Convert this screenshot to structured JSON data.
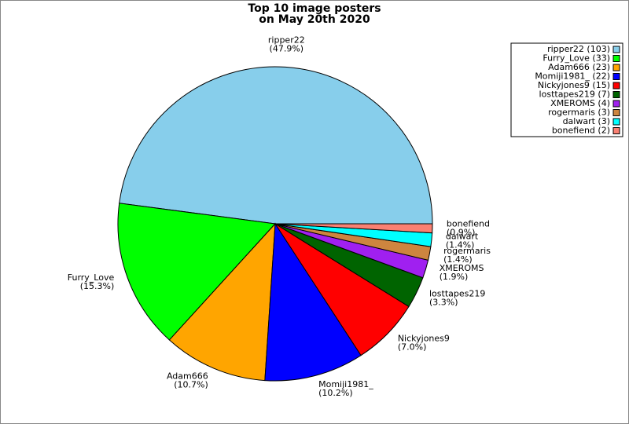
{
  "chart_data": {
    "type": "pie",
    "title_lines": [
      "Top 10 image posters",
      "on May 20th 2020"
    ],
    "categories": [
      "ripper22",
      "Furry_Love",
      "Adam666",
      "Momiji1981_",
      "Nickyjones9",
      "losttapes219",
      "XMEROMS",
      "rogermaris",
      "dalwart",
      "bonefiend"
    ],
    "values": [
      103,
      33,
      23,
      22,
      15,
      7,
      4,
      3,
      3,
      2
    ],
    "percent_labels": [
      "(47.9%)",
      "(15.3%)",
      "(10.7%)",
      "(10.2%)",
      "(7.0%)",
      "(3.3%)",
      "(1.9%)",
      "(1.4%)",
      "(1.4%)",
      "(0.9%)"
    ],
    "legend_labels": [
      "ripper22 (103)",
      "Furry_Love (33)",
      "Adam666 (23)",
      "Momiji1981_ (22)",
      "Nickyjones9 (15)",
      "losttapes219 (7)",
      "XMEROMS (4)",
      "rogermaris (3)",
      "dalwart (3)",
      "bonefiend (2)"
    ],
    "colors": [
      "#87ceeb",
      "#00ff00",
      "#ffa500",
      "#0000ff",
      "#ff0000",
      "#006400",
      "#a020f0",
      "#cd853f",
      "#00ffff",
      "#fa8072"
    ],
    "legend_position": "top-right"
  }
}
